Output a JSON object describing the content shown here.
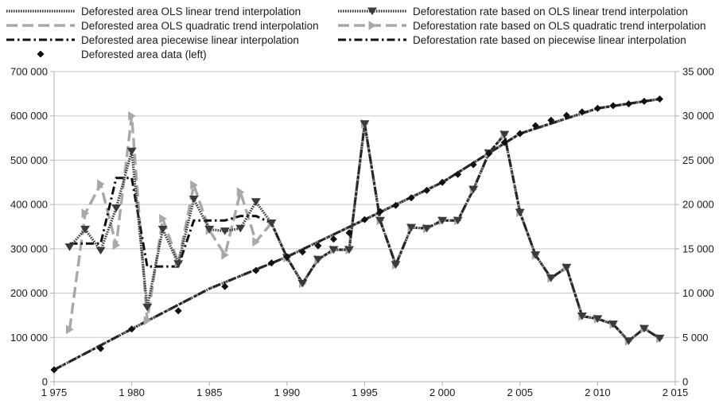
{
  "chart_data": {
    "type": "line",
    "title": "",
    "xlabel": "",
    "ylabel_left": "",
    "ylabel_right": "",
    "x_range": [
      1975,
      2015
    ],
    "x_ticks": [
      1975,
      1980,
      1985,
      1990,
      1995,
      2000,
      2005,
      2010,
      2015
    ],
    "x_tick_labels": [
      "1 975",
      "1 980",
      "1 985",
      "1 990",
      "1 995",
      "2 000",
      "2 005",
      "2 010",
      "2 015"
    ],
    "left_axis_range": [
      0,
      700000
    ],
    "left_ticks": [
      0,
      100000,
      200000,
      300000,
      400000,
      500000,
      600000,
      700000
    ],
    "left_tick_labels": [
      "0",
      "100 000",
      "200 000",
      "300 000",
      "400 000",
      "500 000",
      "600 000",
      "700 000"
    ],
    "right_axis_range": [
      0,
      35000
    ],
    "right_ticks": [
      0,
      5000,
      10000,
      15000,
      20000,
      25000,
      30000,
      35000
    ],
    "right_tick_labels": [
      "0",
      "5 000",
      "10 000",
      "15 000",
      "20 000",
      "25 000",
      "30 000",
      "35 000"
    ],
    "grid": "horizontal",
    "legend_placement": "top",
    "colors": {
      "dark": "#3a3a3a",
      "black": "#111111",
      "gray": "#a8a8a8",
      "axis": "#b0b0b0",
      "grid": "#c8c8c8"
    },
    "series": [
      {
        "name": "Deforested area OLS linear trend interpolation",
        "axis": "left",
        "style": "dotted-dark",
        "marker": "none",
        "x": [
          1975,
          1980,
          1985,
          1990,
          1995,
          2000,
          2005,
          2010,
          2014
        ],
        "values": [
          27000,
          119000,
          210000,
          282000,
          366000,
          450000,
          560000,
          617000,
          638000
        ]
      },
      {
        "name": "Deforested area OLS quadratic trend interpolation",
        "axis": "left",
        "style": "dashed-gray",
        "marker": "none",
        "x": [
          1975,
          1980,
          1985,
          1990,
          1995,
          2000,
          2005,
          2010,
          2014
        ],
        "values": [
          27000,
          119000,
          210000,
          282000,
          366000,
          450000,
          560000,
          617000,
          638000
        ]
      },
      {
        "name": "Deforested area piecewise linear interpolation",
        "axis": "left",
        "style": "dashdot-black",
        "marker": "none",
        "x": [
          1975,
          1980,
          1985,
          1990,
          1995,
          2000,
          2005,
          2010,
          2014
        ],
        "values": [
          27000,
          119000,
          210000,
          282000,
          366000,
          450000,
          560000,
          617000,
          638000
        ]
      },
      {
        "name": "Deforested area data (left)",
        "axis": "left",
        "style": "markers-only",
        "marker": "diamond",
        "x": [
          1975,
          1978,
          1980,
          1983,
          1986,
          1988,
          1989,
          1990,
          1991,
          1992,
          1993,
          1994,
          1995,
          1996,
          1997,
          1998,
          1999,
          2000,
          2001,
          2002,
          2003,
          2004,
          2005,
          2006,
          2007,
          2008,
          2009,
          2010,
          2011,
          2012,
          2013,
          2014
        ],
        "values": [
          27000,
          75000,
          119000,
          160000,
          215000,
          251000,
          268000,
          282000,
          293000,
          307000,
          322000,
          336000,
          366000,
          384000,
          398000,
          415000,
          432000,
          450000,
          468000,
          490000,
          515000,
          540000,
          560000,
          578000,
          590000,
          601000,
          609000,
          617000,
          623000,
          627000,
          633000,
          638000
        ]
      },
      {
        "name": "Deforestation rate based on OLS linear trend interpolation",
        "axis": "right",
        "style": "dotted-dark",
        "marker": "triangle-down",
        "x": [
          1976,
          1977,
          1978,
          1979,
          1980,
          1981,
          1982,
          1983,
          1984,
          1985,
          1986,
          1987,
          1988,
          1989,
          1990,
          1991,
          1992,
          1993,
          1994,
          1995,
          1996,
          1997,
          1998,
          1999,
          2000,
          2001,
          2002,
          2003,
          2004,
          2005,
          2006,
          2007,
          2008,
          2009,
          2010,
          2011,
          2012,
          2013,
          2014
        ],
        "values": [
          15200,
          17200,
          14800,
          19600,
          26000,
          8400,
          17200,
          13300,
          20600,
          17200,
          17000,
          17300,
          20300,
          17900,
          14000,
          11100,
          13800,
          14900,
          14900,
          29100,
          18200,
          13200,
          17400,
          17300,
          18200,
          18200,
          21700,
          25800,
          27900,
          19100,
          14300,
          11700,
          12900,
          7400,
          7100,
          6500,
          4600,
          6000,
          4900
        ]
      },
      {
        "name": "Deforestation rate based on OLS quadratic trend interpolation",
        "axis": "right",
        "style": "dashed-gray",
        "marker": "triangle-right",
        "x": [
          1976,
          1977,
          1978,
          1979,
          1980,
          1981,
          1982,
          1983,
          1984,
          1985,
          1986,
          1987,
          1988,
          1989,
          1990,
          1991,
          1992,
          1993,
          1994,
          1995,
          1996,
          1997,
          1998,
          1999,
          2000,
          2001,
          2002,
          2003,
          2004,
          2005,
          2006,
          2007,
          2008,
          2009,
          2010,
          2011,
          2012,
          2013,
          2014
        ],
        "values": [
          5900,
          19000,
          22300,
          15400,
          30000,
          6900,
          18400,
          13400,
          22200,
          17100,
          14300,
          21400,
          15800,
          17900,
          14000,
          11100,
          13800,
          14900,
          14900,
          29100,
          18200,
          13200,
          17400,
          17300,
          18200,
          18200,
          21700,
          25800,
          27900,
          19100,
          14300,
          11700,
          12900,
          7400,
          7100,
          6500,
          4600,
          6000,
          4900
        ]
      },
      {
        "name": "Deforestation rate based on piecewise linear interpolation",
        "axis": "right",
        "style": "dashdot-black",
        "marker": "none",
        "x": [
          1976,
          1977,
          1978,
          1979,
          1980,
          1981,
          1982,
          1983,
          1984,
          1985,
          1986,
          1987,
          1988,
          1989,
          1990,
          1991,
          1992,
          1993,
          1994,
          1995,
          1996,
          1997,
          1998,
          1999,
          2000,
          2001,
          2002,
          2003,
          2004,
          2005,
          2006,
          2007,
          2008,
          2009,
          2010,
          2011,
          2012,
          2013,
          2014
        ],
        "values": [
          15600,
          15600,
          15600,
          23000,
          23000,
          13000,
          13000,
          13000,
          18200,
          18200,
          18200,
          18700,
          18700,
          17900,
          14000,
          11100,
          13800,
          14900,
          14900,
          29100,
          18200,
          13200,
          17400,
          17300,
          18200,
          18200,
          21700,
          25800,
          27900,
          19100,
          14300,
          11700,
          12900,
          7400,
          7100,
          6500,
          4600,
          6000,
          4900
        ]
      }
    ],
    "legend": [
      {
        "label": "Deforested area OLS linear trend interpolation",
        "style": "dotted-dark",
        "marker": "none"
      },
      {
        "label": "Deforestation rate based on OLS linear trend interpolation",
        "style": "dotted-dark",
        "marker": "triangle-down"
      },
      {
        "label": "Deforested area OLS quadratic trend interpolation",
        "style": "dashed-gray",
        "marker": "none"
      },
      {
        "label": "Deforestation rate based on OLS quadratic trend interpolation",
        "style": "dashed-gray",
        "marker": "triangle-right"
      },
      {
        "label": "Deforested area piecewise linear interpolation",
        "style": "dashdot-black",
        "marker": "none"
      },
      {
        "label": "Deforestation rate based on piecewise linear interpolation",
        "style": "dashdot-black",
        "marker": "none"
      },
      {
        "label": "Deforested area data (left)",
        "style": "markers-only",
        "marker": "diamond"
      }
    ]
  }
}
